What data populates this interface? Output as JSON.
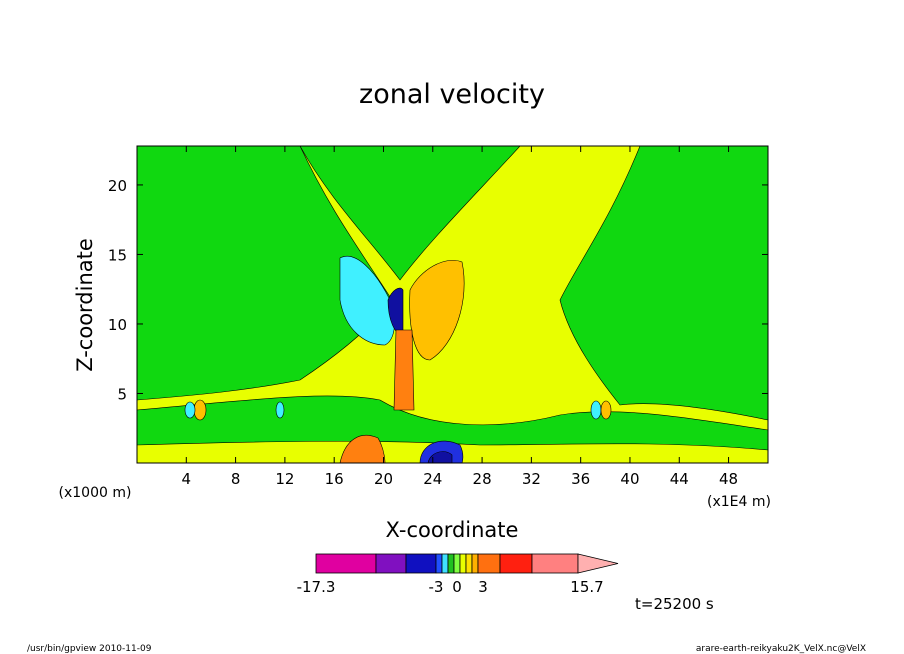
{
  "chart_data": {
    "type": "heatmap",
    "title": "zonal velocity",
    "xlabel": "X-coordinate",
    "ylabel": "Z-coordinate",
    "x_unit_left": "(x1000 m)",
    "x_unit_right": "(x1E4 m)",
    "x_ticks": [
      "4",
      "8",
      "12",
      "16",
      "20",
      "24",
      "28",
      "32",
      "36",
      "40",
      "44",
      "48"
    ],
    "x_tick_values": [
      4,
      8,
      12,
      16,
      20,
      24,
      28,
      32,
      36,
      40,
      44,
      48
    ],
    "y_ticks": [
      "5",
      "10",
      "15",
      "20"
    ],
    "y_tick_values": [
      5,
      10,
      15,
      20
    ],
    "xlim": [
      0,
      51.2
    ],
    "ylim": [
      0,
      22.8
    ],
    "colorbar": {
      "labels": [
        "-17.3",
        "-3",
        "0",
        "3",
        "15.7"
      ],
      "label_values": [
        -17.3,
        -3,
        0,
        3,
        15.7
      ],
      "colors": [
        "#e000a0",
        "#8010c0",
        "#1010c0",
        "#2050ff",
        "#40e0ff",
        "#20c020",
        "#80ff40",
        "#e8ff00",
        "#ffe000",
        "#ffb000",
        "#ff7010",
        "#ff2010",
        "#ff8080",
        "#ffb0b0"
      ]
    },
    "field_colors": {
      "background": "#10d810",
      "yellow": "#e8ff00",
      "cyan": "#40f0ff",
      "blue": "#2030e0",
      "darkblue": "#1010a0",
      "orange": "#ffc000",
      "darkorange": "#ff8010",
      "red": "#ff2010"
    },
    "time_label": "t=25200 s"
  },
  "footer": {
    "left": "/usr/bin/gpview  2010-11-09",
    "right": "arare-earth-reikyaku2K_VelX.nc@VelX"
  }
}
